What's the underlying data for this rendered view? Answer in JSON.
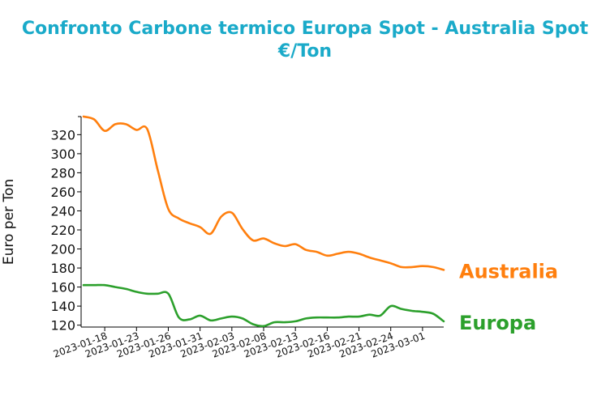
{
  "chart_data": {
    "type": "line",
    "title": "Confronto Carbone termico Europa Spot - Australia Spot",
    "subtitle": "€/Ton",
    "xlabel": "",
    "ylabel": "Euro per Ton",
    "ylim": [
      118,
      339
    ],
    "yticks": [
      120,
      140,
      160,
      180,
      200,
      220,
      240,
      260,
      280,
      300,
      320
    ],
    "xticks": [
      "2023-01-18",
      "2023-01-23",
      "2023-01-26",
      "2023-01-31",
      "2023-02-03",
      "2023-02-08",
      "2023-02-13",
      "2023-02-16",
      "2023-02-21",
      "2023-02-24",
      "2023-03-01"
    ],
    "grid": false,
    "legend": "none",
    "series": [
      {
        "name": "Australia",
        "color": "#ff7f0e",
        "x": [
          "2023-01-16",
          "2023-01-17",
          "2023-01-18",
          "2023-01-19",
          "2023-01-20",
          "2023-01-23",
          "2023-01-24",
          "2023-01-25",
          "2023-01-26",
          "2023-01-27",
          "2023-01-30",
          "2023-01-31",
          "2023-02-01",
          "2023-02-02",
          "2023-02-03",
          "2023-02-06",
          "2023-02-07",
          "2023-02-08",
          "2023-02-09",
          "2023-02-10",
          "2023-02-13",
          "2023-02-14",
          "2023-02-15",
          "2023-02-16",
          "2023-02-17",
          "2023-02-20",
          "2023-02-21",
          "2023-02-22",
          "2023-02-23",
          "2023-02-24",
          "2023-02-27",
          "2023-02-28",
          "2023-03-01",
          "2023-03-02",
          "2023-03-03"
        ],
        "values": [
          339,
          336,
          324,
          331,
          331,
          325,
          326,
          283,
          242,
          232,
          227,
          223,
          216,
          234,
          238,
          221,
          209,
          211,
          206,
          203,
          205,
          199,
          197,
          193,
          195,
          197,
          195,
          191,
          188,
          185,
          181,
          181,
          182,
          181,
          178
        ]
      },
      {
        "name": "Europa",
        "color": "#2ca02c",
        "x": [
          "2023-01-16",
          "2023-01-17",
          "2023-01-18",
          "2023-01-19",
          "2023-01-20",
          "2023-01-23",
          "2023-01-24",
          "2023-01-25",
          "2023-01-26",
          "2023-01-27",
          "2023-01-30",
          "2023-01-31",
          "2023-02-01",
          "2023-02-02",
          "2023-02-03",
          "2023-02-06",
          "2023-02-07",
          "2023-02-08",
          "2023-02-09",
          "2023-02-10",
          "2023-02-13",
          "2023-02-14",
          "2023-02-15",
          "2023-02-16",
          "2023-02-17",
          "2023-02-20",
          "2023-02-21",
          "2023-02-22",
          "2023-02-23",
          "2023-02-24",
          "2023-02-27",
          "2023-02-28",
          "2023-03-01",
          "2023-03-02",
          "2023-03-03"
        ],
        "values": [
          162,
          162,
          162,
          160,
          158,
          155,
          153,
          153,
          153,
          128,
          126,
          130,
          125,
          127,
          129,
          127,
          121,
          119,
          123,
          123,
          124,
          127,
          128,
          128,
          128,
          129,
          129,
          131,
          130,
          140,
          137,
          135,
          134,
          132,
          124
        ]
      }
    ]
  }
}
